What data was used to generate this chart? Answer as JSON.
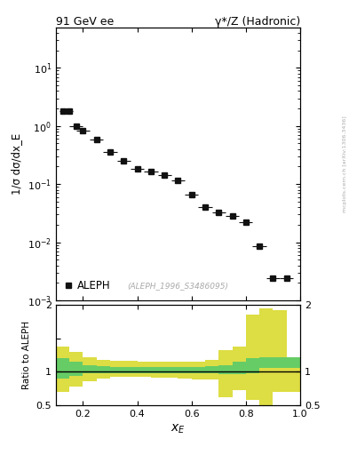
{
  "title_left": "91 GeV ee",
  "title_right": "γ*/Z (Hadronic)",
  "ylabel_main": "1/σ dσ/dx_E",
  "ylabel_ratio": "Ratio to ALEPH",
  "xlabel": "x_E",
  "watermark": "(ALEPH_1996_S3486095)",
  "arxiv_text": "mcplots.cern.ch [arXiv:1306.3436]",
  "legend_label": "ALEPH",
  "ylim_main": [
    0.001,
    50
  ],
  "ylim_ratio": [
    0.5,
    2.0
  ],
  "xlim": [
    0.1,
    1.0
  ],
  "data_x": [
    0.125,
    0.15,
    0.175,
    0.2,
    0.25,
    0.3,
    0.35,
    0.4,
    0.45,
    0.5,
    0.55,
    0.6,
    0.65,
    0.7,
    0.75,
    0.8,
    0.85,
    0.9,
    0.95
  ],
  "data_y": [
    1.8,
    1.8,
    1.0,
    0.82,
    0.58,
    0.36,
    0.25,
    0.185,
    0.165,
    0.145,
    0.115,
    0.065,
    0.04,
    0.033,
    0.028,
    0.022,
    0.0085,
    0.0024,
    0.0024
  ],
  "data_xerr": [
    0.0125,
    0.0125,
    0.025,
    0.025,
    0.025,
    0.025,
    0.025,
    0.025,
    0.025,
    0.025,
    0.025,
    0.025,
    0.025,
    0.025,
    0.025,
    0.025,
    0.025,
    0.025,
    0.025
  ],
  "ratio_bins": [
    0.1,
    0.15,
    0.2,
    0.25,
    0.3,
    0.35,
    0.4,
    0.45,
    0.5,
    0.55,
    0.6,
    0.65,
    0.7,
    0.75,
    0.8,
    0.85,
    0.9,
    0.95,
    1.0
  ],
  "ratio_green_lo": [
    0.9,
    0.94,
    0.97,
    0.975,
    0.975,
    0.975,
    0.975,
    0.97,
    0.97,
    0.97,
    0.97,
    0.97,
    0.965,
    0.96,
    0.98,
    1.05,
    1.05,
    1.05
  ],
  "ratio_green_hi": [
    1.2,
    1.15,
    1.1,
    1.08,
    1.07,
    1.07,
    1.07,
    1.07,
    1.07,
    1.07,
    1.07,
    1.08,
    1.1,
    1.15,
    1.2,
    1.22,
    1.22,
    1.22
  ],
  "ratio_yellow_lo": [
    0.7,
    0.78,
    0.86,
    0.9,
    0.92,
    0.92,
    0.92,
    0.91,
    0.91,
    0.9,
    0.88,
    0.88,
    0.62,
    0.72,
    0.58,
    0.5,
    0.7,
    0.7
  ],
  "ratio_yellow_hi": [
    1.38,
    1.3,
    1.22,
    1.18,
    1.16,
    1.16,
    1.15,
    1.15,
    1.15,
    1.15,
    1.15,
    1.17,
    1.32,
    1.38,
    1.85,
    1.95,
    1.92,
    1.2
  ],
  "marker_color": "#111111",
  "green_color": "#66cc66",
  "yellow_color": "#dddd44",
  "background_color": "#ffffff"
}
